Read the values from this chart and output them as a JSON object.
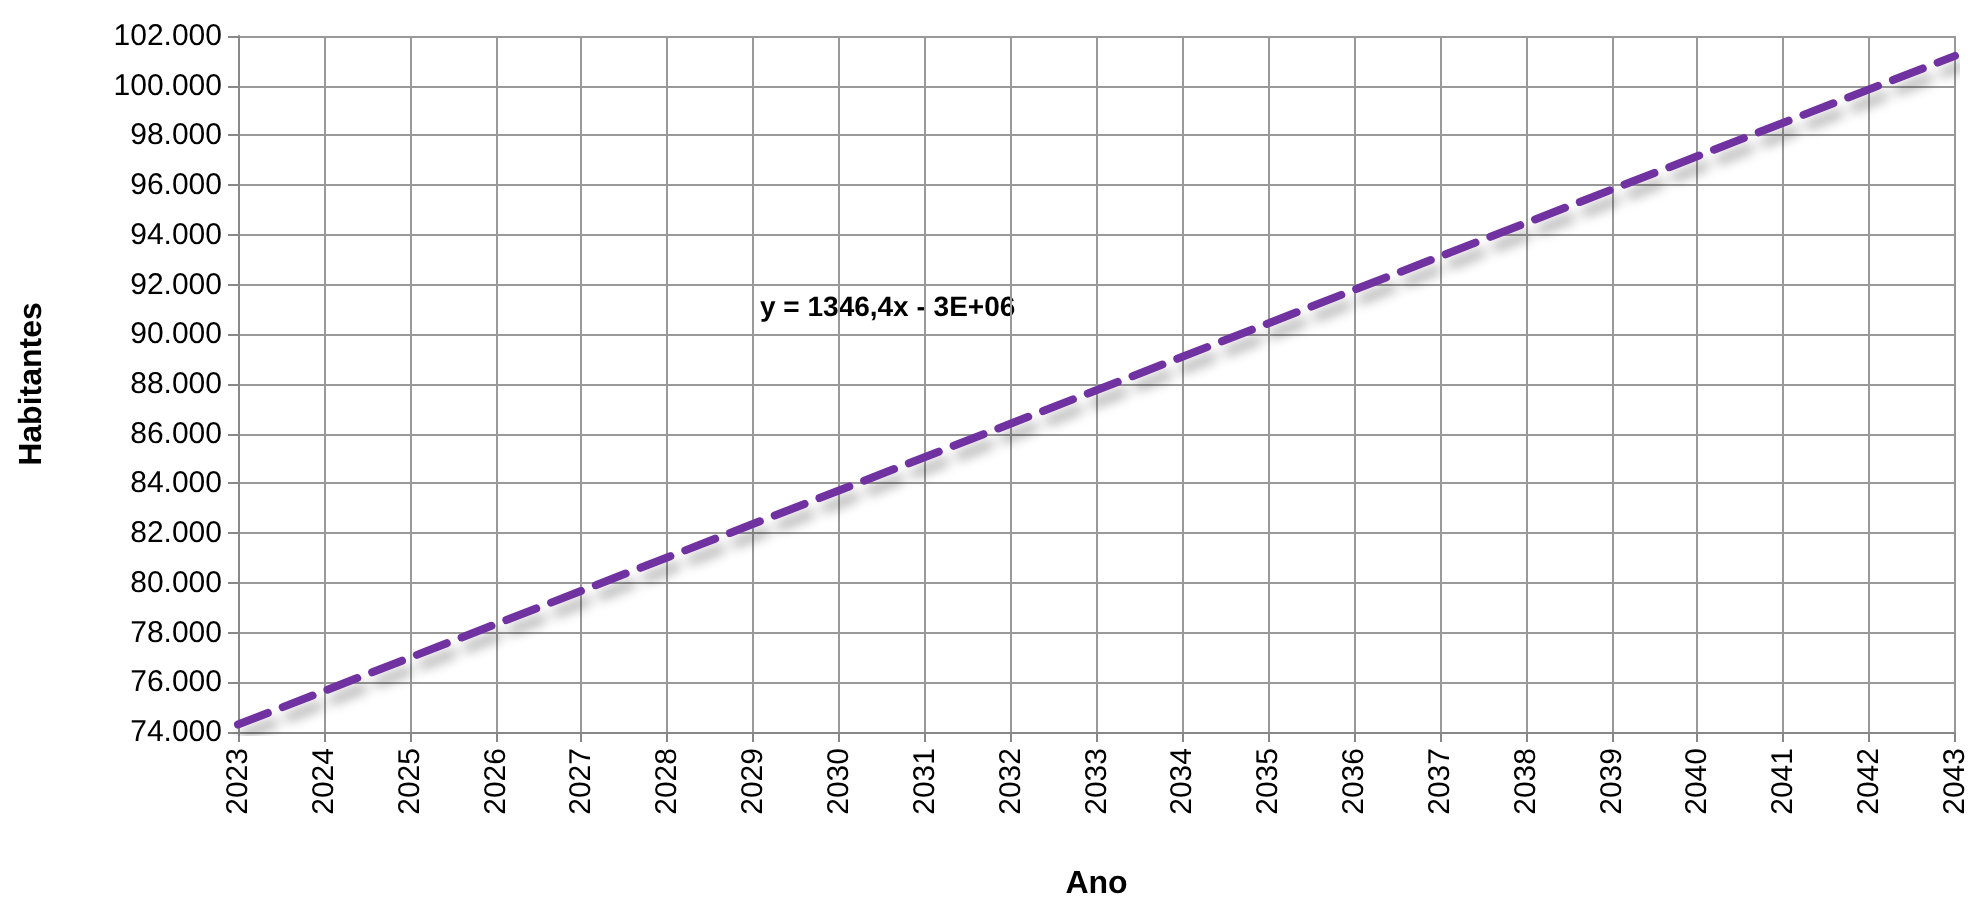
{
  "chart_data": {
    "type": "line",
    "xlabel": "Ano",
    "ylabel": "Habitantes",
    "x": [
      2023,
      2043
    ],
    "series": [
      {
        "color": "#7030a0",
        "values": [
          74300,
          101200
        ]
      }
    ],
    "xlim": [
      2023,
      2043
    ],
    "xticks": [
      2023,
      2024,
      2025,
      2026,
      2027,
      2028,
      2029,
      2030,
      2031,
      2032,
      2033,
      2034,
      2035,
      2036,
      2037,
      2038,
      2039,
      2040,
      2041,
      2042,
      2043
    ],
    "ylim": [
      74000,
      102000
    ],
    "yticks": [
      {
        "value": 74000,
        "label": "74.000"
      },
      {
        "value": 76000,
        "label": "76.000"
      },
      {
        "value": 78000,
        "label": "78.000"
      },
      {
        "value": 80000,
        "label": "80.000"
      },
      {
        "value": 82000,
        "label": "82.000"
      },
      {
        "value": 84000,
        "label": "84.000"
      },
      {
        "value": 86000,
        "label": "86.000"
      },
      {
        "value": 88000,
        "label": "88.000"
      },
      {
        "value": 90000,
        "label": "90.000"
      },
      {
        "value": 92000,
        "label": "92.000"
      },
      {
        "value": 94000,
        "label": "94.000"
      },
      {
        "value": 96000,
        "label": "96.000"
      },
      {
        "value": 98000,
        "label": "98.000"
      },
      {
        "value": 100000,
        "label": "100.000"
      },
      {
        "value": 102000,
        "label": "102.000"
      }
    ],
    "annotations": [
      "y = 1346,4x - 3E+06"
    ],
    "grid": true,
    "marker": "none",
    "line_style": "dashed"
  }
}
